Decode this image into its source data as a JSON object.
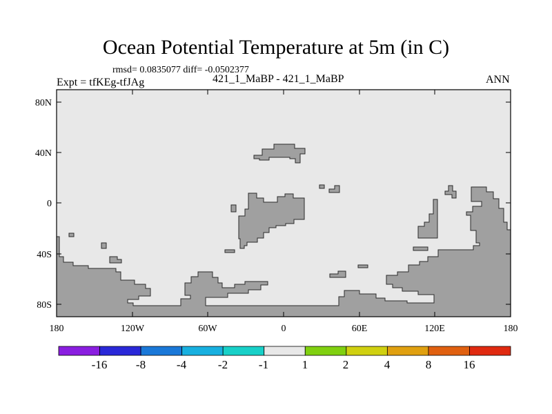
{
  "header": {
    "title": "Ocean Potential Temperature at 5m (in C)",
    "stats": "rmsd= 0.0835077 diff= -0.0502377",
    "expt": "Expt = tfKEg-tfJAg",
    "cases": "421_1_MaBP - 421_1_MaBP",
    "season": "ANN"
  },
  "map": {
    "lon_range": [
      -180,
      180
    ],
    "lat_range": [
      -90,
      90
    ],
    "x_ticks": [
      "180",
      "120W",
      "60W",
      "0",
      "60E",
      "120E",
      "180"
    ],
    "y_ticks": [
      "80N",
      "40N",
      "0",
      "40S",
      "80S"
    ],
    "background_color": "#e8e8e8",
    "land_color": "#a0a0a0",
    "difference_field_category": "-1 to 1"
  },
  "colorbar": {
    "colors": [
      "#8a1ee0",
      "#2a28d8",
      "#1a78d8",
      "#18b0e0",
      "#18d0c8",
      "#e8e8e8",
      "#80d010",
      "#d0d010",
      "#e0a010",
      "#e06010",
      "#e02a10"
    ],
    "labels": [
      "-16",
      "-8",
      "-4",
      "-2",
      "-1",
      "1",
      "2",
      "4",
      "8",
      "16"
    ]
  }
}
